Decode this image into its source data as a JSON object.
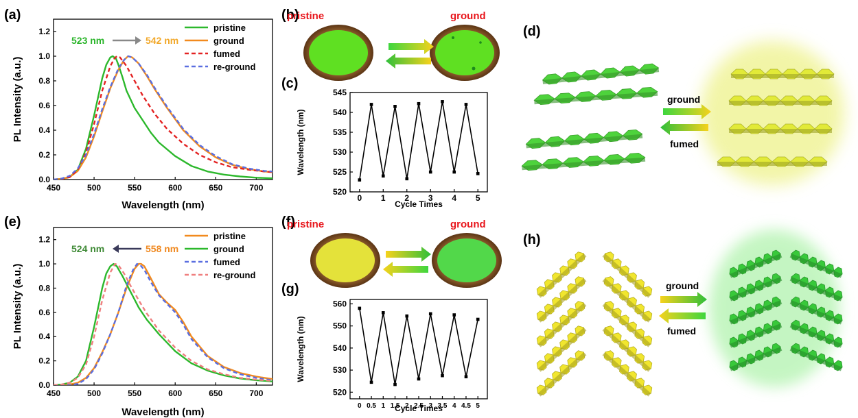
{
  "panels": {
    "a": "(a)",
    "b": "(b)",
    "c": "(c)",
    "d": "(d)",
    "e": "(e)",
    "f": "(f)",
    "g": "(g)",
    "h": "(h)"
  },
  "photos": {
    "b": {
      "left": "pristine",
      "right": "ground",
      "left_color": "#5fe022",
      "right_color": "#5fe022"
    },
    "f": {
      "left": "pristine",
      "right": "ground",
      "left_color": "#e4e23a",
      "right_color": "#52d84a"
    }
  },
  "schemes": {
    "d": {
      "top": "ground",
      "bottom": "fumed",
      "left_color": "#4ed33c",
      "right_color": "#e2ea38"
    },
    "h": {
      "top": "ground",
      "bottom": "fumed",
      "left_color": "#f1e62e",
      "right_color": "#38c93a"
    }
  },
  "chart_data": [
    {
      "id": "a",
      "type": "line",
      "xlabel": "Wavelength (nm)",
      "ylabel": "PL Intensity (a.u.)",
      "xlim": [
        450,
        720
      ],
      "ylim": [
        0,
        1.3
      ],
      "xticks": [
        450,
        500,
        550,
        600,
        650,
        700
      ],
      "yticks": [
        0.0,
        0.2,
        0.4,
        0.6,
        0.8,
        1.0,
        1.2
      ],
      "annotation": {
        "from": "523 nm",
        "to": "542 nm",
        "from_color": "#2bb52b",
        "to_color": "#f2a82a",
        "arrow_color": "#888888"
      },
      "series": [
        {
          "name": "pristine",
          "color": "#2cb82c",
          "dash": "solid",
          "x": [
            450,
            460,
            470,
            480,
            490,
            500,
            510,
            515,
            520,
            523,
            527,
            530,
            535,
            540,
            550,
            560,
            570,
            580,
            600,
            620,
            640,
            660,
            680,
            700,
            720
          ],
          "y": [
            0.0,
            0.005,
            0.02,
            0.08,
            0.25,
            0.52,
            0.82,
            0.93,
            0.99,
            1.0,
            0.98,
            0.93,
            0.83,
            0.72,
            0.58,
            0.48,
            0.38,
            0.3,
            0.19,
            0.11,
            0.065,
            0.04,
            0.025,
            0.015,
            0.01
          ]
        },
        {
          "name": "ground",
          "color": "#f28a1e",
          "dash": "solid",
          "x": [
            450,
            460,
            470,
            480,
            490,
            500,
            510,
            520,
            530,
            537,
            542,
            547,
            555,
            565,
            575,
            590,
            610,
            630,
            650,
            670,
            690,
            710,
            720
          ],
          "y": [
            0.0,
            0.005,
            0.02,
            0.07,
            0.18,
            0.35,
            0.55,
            0.74,
            0.89,
            0.97,
            1.0,
            0.99,
            0.94,
            0.84,
            0.73,
            0.58,
            0.4,
            0.27,
            0.18,
            0.12,
            0.085,
            0.065,
            0.06
          ]
        },
        {
          "name": "fumed",
          "color": "#e32222",
          "dash": "dash",
          "x": [
            450,
            460,
            470,
            480,
            490,
            500,
            510,
            520,
            525,
            528,
            532,
            540,
            550,
            560,
            575,
            590,
            610,
            630,
            650,
            670,
            690,
            710,
            720
          ],
          "y": [
            0.0,
            0.005,
            0.02,
            0.08,
            0.22,
            0.45,
            0.72,
            0.92,
            0.98,
            1.0,
            0.99,
            0.92,
            0.8,
            0.68,
            0.53,
            0.41,
            0.29,
            0.2,
            0.14,
            0.1,
            0.08,
            0.065,
            0.06
          ]
        },
        {
          "name": "re-ground",
          "color": "#5a6ee0",
          "dash": "dash",
          "x": [
            450,
            460,
            470,
            480,
            490,
            500,
            510,
            520,
            530,
            537,
            542,
            547,
            555,
            565,
            575,
            590,
            610,
            630,
            650,
            670,
            690,
            710,
            720
          ],
          "y": [
            0.0,
            0.008,
            0.03,
            0.09,
            0.2,
            0.37,
            0.57,
            0.75,
            0.9,
            0.97,
            1.0,
            0.99,
            0.94,
            0.85,
            0.74,
            0.59,
            0.41,
            0.28,
            0.19,
            0.125,
            0.09,
            0.07,
            0.065
          ]
        }
      ]
    },
    {
      "id": "c",
      "type": "line",
      "xlabel": "Cycle Times",
      "ylabel": "Wavelength (nm)",
      "xlim": [
        -0.4,
        5.4
      ],
      "ylim": [
        520,
        545
      ],
      "xticks": [
        0,
        1,
        2,
        3,
        4,
        5
      ],
      "yticks": [
        520,
        525,
        530,
        535,
        540,
        545
      ],
      "series": [
        {
          "color": "#000000",
          "marker": "square",
          "x": [
            0,
            0.5,
            1,
            1.5,
            2,
            2.5,
            3,
            3.5,
            4,
            4.5,
            5
          ],
          "y": [
            523,
            542,
            524,
            541.5,
            523.3,
            542.2,
            525,
            542.7,
            525,
            542,
            524.6
          ]
        }
      ]
    },
    {
      "id": "e",
      "type": "line",
      "xlabel": "Wavelength (nm)",
      "ylabel": "PL Intensity (a.u.)",
      "xlim": [
        450,
        720
      ],
      "ylim": [
        0,
        1.3
      ],
      "xticks": [
        450,
        500,
        550,
        600,
        650,
        700
      ],
      "yticks": [
        0.0,
        0.2,
        0.4,
        0.6,
        0.8,
        1.0,
        1.2
      ],
      "annotation": {
        "from": "524 nm",
        "to": "558 nm",
        "from_color": "#3f8a36",
        "to_color": "#f08a22",
        "arrow_color": "#3a3a5a"
      },
      "series": [
        {
          "name": "pristine",
          "color": "#f28a1e",
          "dash": "solid",
          "x": [
            450,
            460,
            470,
            480,
            490,
            500,
            510,
            520,
            530,
            540,
            550,
            555,
            558,
            562,
            570,
            580,
            590,
            600,
            610,
            620,
            640,
            660,
            680,
            700,
            720
          ],
          "y": [
            0.0,
            0.0,
            0.005,
            0.02,
            0.06,
            0.14,
            0.27,
            0.42,
            0.6,
            0.8,
            0.96,
            1.0,
            1.0,
            0.98,
            0.88,
            0.75,
            0.68,
            0.62,
            0.52,
            0.4,
            0.24,
            0.15,
            0.1,
            0.07,
            0.05
          ]
        },
        {
          "name": "ground",
          "color": "#2cb82c",
          "dash": "solid",
          "x": [
            450,
            460,
            470,
            480,
            490,
            500,
            510,
            515,
            520,
            524,
            528,
            535,
            545,
            555,
            565,
            580,
            600,
            620,
            640,
            660,
            680,
            700,
            720
          ],
          "y": [
            0.0,
            0.005,
            0.02,
            0.07,
            0.2,
            0.48,
            0.8,
            0.92,
            0.98,
            1.0,
            0.98,
            0.9,
            0.77,
            0.64,
            0.54,
            0.42,
            0.28,
            0.18,
            0.12,
            0.08,
            0.055,
            0.04,
            0.03
          ]
        },
        {
          "name": "fumed",
          "color": "#5a6ee0",
          "dash": "dash",
          "x": [
            450,
            460,
            470,
            480,
            490,
            500,
            510,
            520,
            530,
            540,
            548,
            553,
            557,
            562,
            570,
            580,
            590,
            600,
            610,
            620,
            640,
            660,
            680,
            700,
            720
          ],
          "y": [
            0.0,
            0.0,
            0.0,
            0.01,
            0.05,
            0.13,
            0.26,
            0.42,
            0.6,
            0.82,
            0.95,
            1.0,
            0.99,
            0.95,
            0.85,
            0.74,
            0.67,
            0.6,
            0.5,
            0.38,
            0.23,
            0.14,
            0.09,
            0.06,
            0.04
          ]
        },
        {
          "name": "re-ground",
          "color": "#ef7f7f",
          "dash": "dash",
          "x": [
            450,
            460,
            470,
            480,
            490,
            500,
            510,
            520,
            526,
            530,
            537,
            545,
            555,
            565,
            580,
            600,
            620,
            640,
            660,
            680,
            700,
            720
          ],
          "y": [
            0.0,
            0.005,
            0.02,
            0.06,
            0.17,
            0.4,
            0.7,
            0.93,
            1.0,
            0.99,
            0.92,
            0.82,
            0.7,
            0.59,
            0.45,
            0.31,
            0.2,
            0.13,
            0.09,
            0.06,
            0.045,
            0.035
          ]
        }
      ]
    },
    {
      "id": "g",
      "type": "line",
      "xlabel": "Cycle Times",
      "ylabel": "Wavelength (nm)",
      "xlim": [
        -0.4,
        5.4
      ],
      "ylim": [
        517,
        562
      ],
      "xticks": [
        0,
        0.5,
        1,
        1.5,
        2,
        2.5,
        3,
        3.5,
        4,
        4.5,
        5
      ],
      "xticklabels": [
        "0",
        "0.5",
        "1",
        "1.5",
        "2",
        "2.5",
        "3",
        "3.5",
        "4",
        "4.5",
        "5"
      ],
      "yticks": [
        520,
        530,
        540,
        550,
        560
      ],
      "series": [
        {
          "color": "#000000",
          "marker": "square",
          "x": [
            0,
            0.5,
            1,
            1.5,
            2,
            2.5,
            3,
            3.5,
            4,
            4.5,
            5
          ],
          "y": [
            558,
            524.5,
            556,
            523.5,
            554.5,
            526,
            555.5,
            527.5,
            555,
            527,
            553
          ]
        }
      ]
    }
  ]
}
